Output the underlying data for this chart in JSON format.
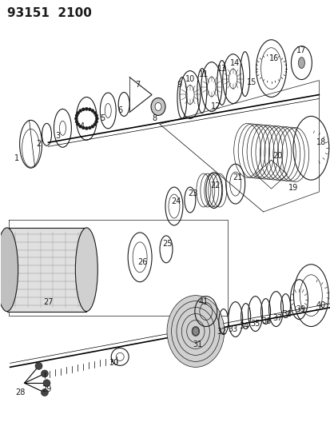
{
  "title": "93151  2100",
  "bg_color": "#ffffff",
  "line_color": "#1a1a1a",
  "title_fontsize": 11,
  "label_fontsize": 7,
  "fig_width": 4.14,
  "fig_height": 5.33,
  "dpi": 100
}
